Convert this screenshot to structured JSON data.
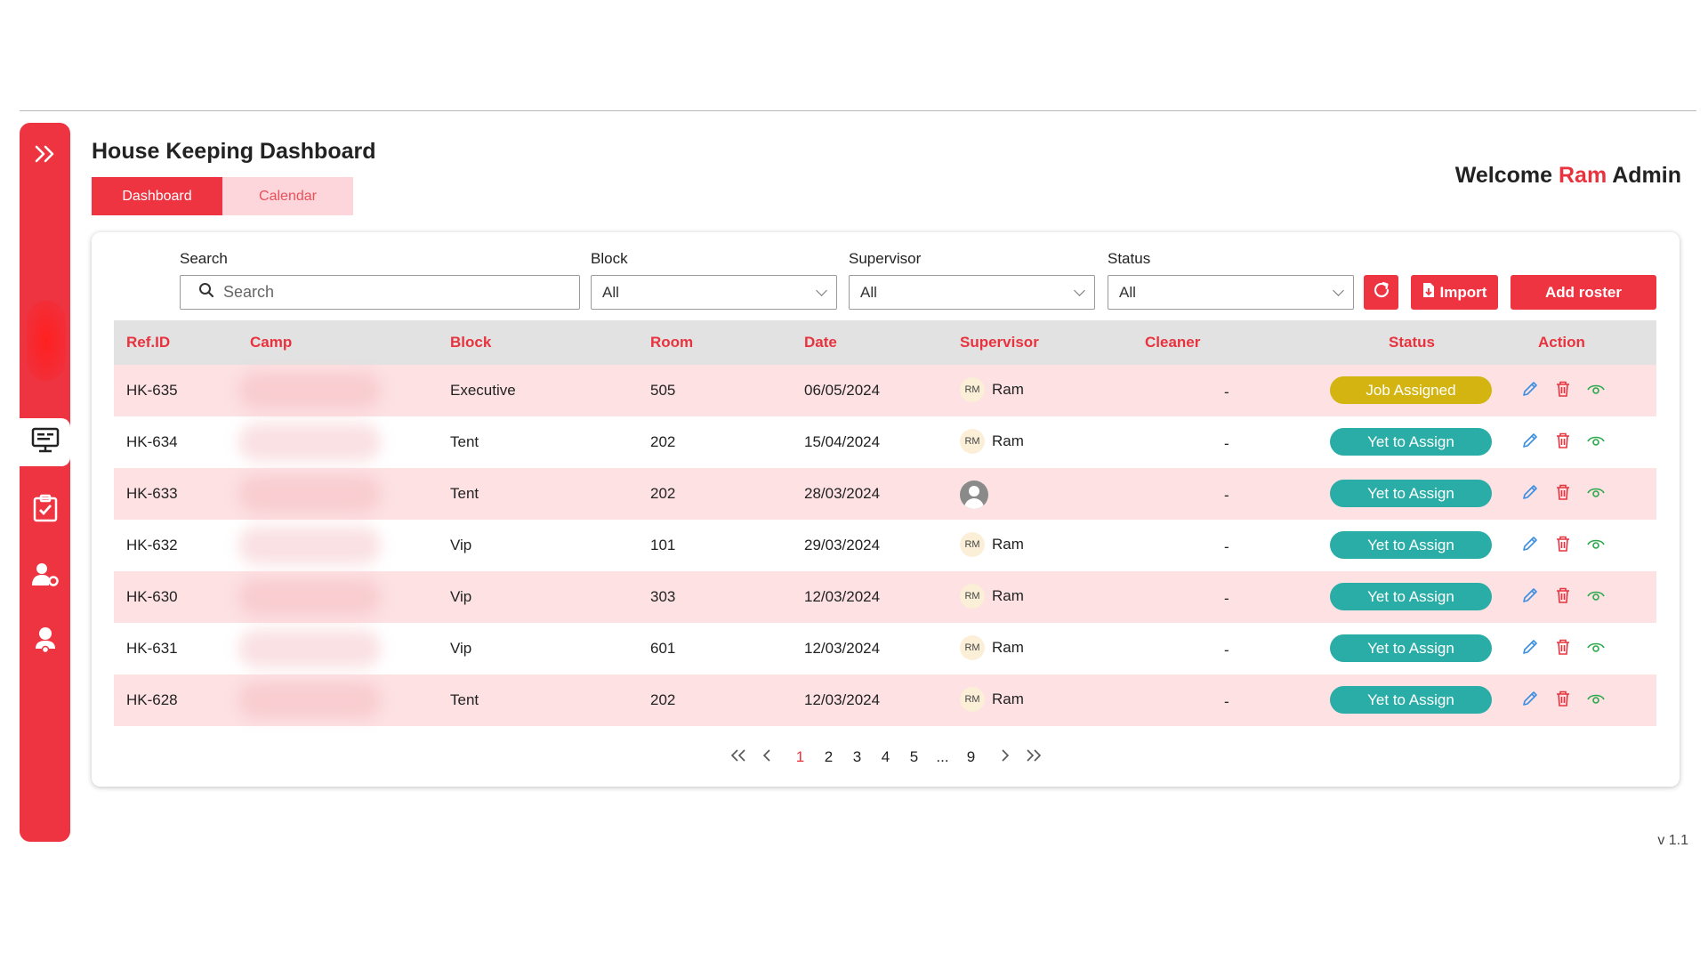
{
  "page": {
    "title": "House Keeping Dashboard",
    "version": "v 1.1"
  },
  "tabs": [
    {
      "label": "Dashboard",
      "active": true
    },
    {
      "label": "Calendar",
      "active": false
    }
  ],
  "welcome": {
    "prefix": "Welcome",
    "name": "Ram",
    "role": "Admin"
  },
  "filters": {
    "search": {
      "label": "Search",
      "placeholder": "Search"
    },
    "block": {
      "label": "Block",
      "value": "All"
    },
    "supervisor": {
      "label": "Supervisor",
      "value": "All"
    },
    "status": {
      "label": "Status",
      "value": "All"
    }
  },
  "toolbar": {
    "import_label": "Import",
    "add_label": "Add roster"
  },
  "table": {
    "headers": [
      "Ref.ID",
      "Camp",
      "Block",
      "Room",
      "Date",
      "Supervisor",
      "Cleaner",
      "Status",
      "Action"
    ],
    "rows": [
      {
        "ref": "HK-635",
        "block": "Executive",
        "room": "505",
        "date": "06/05/2024",
        "initials": "RM",
        "supervisor": "Ram",
        "cleaner": "-",
        "status": "Job Assigned"
      },
      {
        "ref": "HK-634",
        "block": "Tent",
        "room": "202",
        "date": "15/04/2024",
        "initials": "RM",
        "supervisor": "Ram",
        "cleaner": "-",
        "status": "Yet to Assign"
      },
      {
        "ref": "HK-633",
        "block": "Tent",
        "room": "202",
        "date": "28/03/2024",
        "initials": "",
        "supervisor": "",
        "cleaner": "-",
        "status": "Yet to Assign"
      },
      {
        "ref": "HK-632",
        "block": "Vip",
        "room": "101",
        "date": "29/03/2024",
        "initials": "RM",
        "supervisor": "Ram",
        "cleaner": "-",
        "status": "Yet to Assign"
      },
      {
        "ref": "HK-630",
        "block": "Vip",
        "room": "303",
        "date": "12/03/2024",
        "initials": "RM",
        "supervisor": "Ram",
        "cleaner": "-",
        "status": "Yet to Assign"
      },
      {
        "ref": "HK-631",
        "block": "Vip",
        "room": "601",
        "date": "12/03/2024",
        "initials": "RM",
        "supervisor": "Ram",
        "cleaner": "-",
        "status": "Yet to Assign"
      },
      {
        "ref": "HK-628",
        "block": "Tent",
        "room": "202",
        "date": "12/03/2024",
        "initials": "RM",
        "supervisor": "Ram",
        "cleaner": "-",
        "status": "Yet to Assign"
      }
    ]
  },
  "pagination": {
    "pages": [
      "1",
      "2",
      "3",
      "4",
      "5",
      "...",
      "9"
    ],
    "current": "1"
  },
  "colors": {
    "accent": "#ee3341",
    "job_assigned": "#d4b410",
    "yet_to_assign": "#2aada6",
    "edit": "#3b8fe0",
    "delete": "#e8333f",
    "view": "#2aa84a"
  },
  "icons": {
    "sidebar": [
      "expand-icon",
      "monitor-icon",
      "clipboard-check-icon",
      "user-gear-icon",
      "user-pin-icon"
    ],
    "actions": [
      "edit-icon",
      "delete-icon",
      "view-icon"
    ]
  }
}
